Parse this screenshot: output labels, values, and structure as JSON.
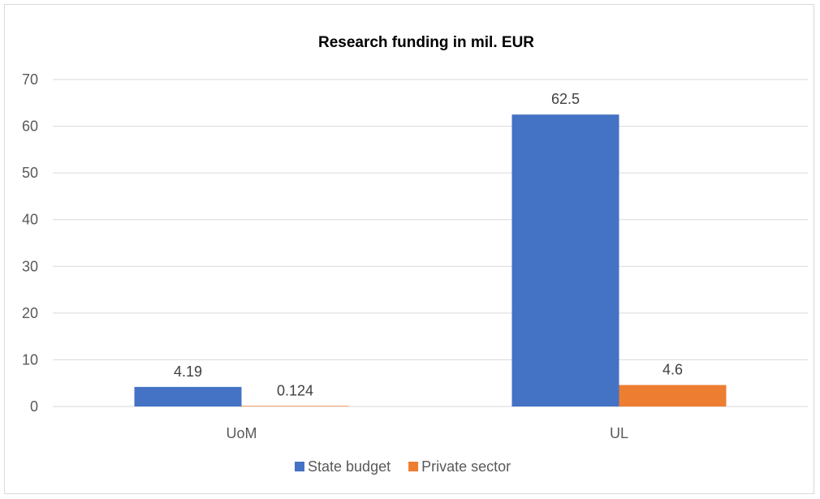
{
  "chart_data": {
    "type": "bar",
    "title": "Research funding in mil. EUR",
    "xlabel": "",
    "ylabel": "",
    "categories": [
      "UoM",
      "UL"
    ],
    "series": [
      {
        "name": "State budget",
        "values": [
          4.19,
          62.5
        ],
        "labels": [
          "4.19",
          "62.5"
        ],
        "color": "#4472C4"
      },
      {
        "name": "Private sector",
        "values": [
          0.124,
          4.6
        ],
        "labels": [
          "0.124",
          "4.6"
        ],
        "color": "#ED7D31"
      }
    ],
    "ylim": [
      0,
      70
    ],
    "yticks": [
      "0",
      "10",
      "20",
      "30",
      "40",
      "50",
      "60",
      "70"
    ],
    "grid": true,
    "legend_position": "bottom"
  }
}
